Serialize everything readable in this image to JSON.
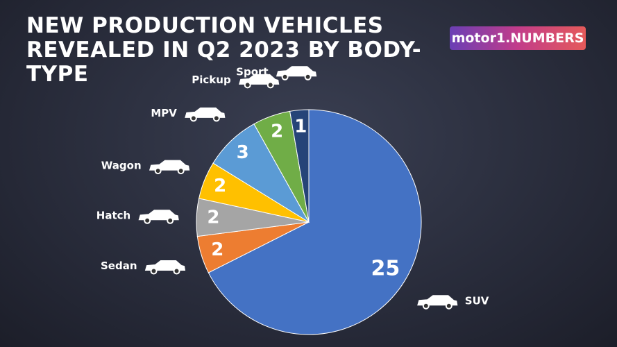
{
  "chart_data": {
    "type": "pie",
    "title": "NEW PRODUCTION VEHICLES REVEALED IN Q2 2023 BY BODY-TYPE",
    "logo": "motor1.NUMBERS",
    "categories": [
      "SUV",
      "Sedan",
      "Hatch",
      "Wagon",
      "MPV",
      "Pickup",
      "Sport"
    ],
    "values": [
      25,
      2,
      2,
      2,
      3,
      2,
      1
    ],
    "colors": [
      "#4472c4",
      "#ed7d31",
      "#a5a5a5",
      "#ffc000",
      "#5b9bd5",
      "#70ad47",
      "#264478"
    ]
  }
}
